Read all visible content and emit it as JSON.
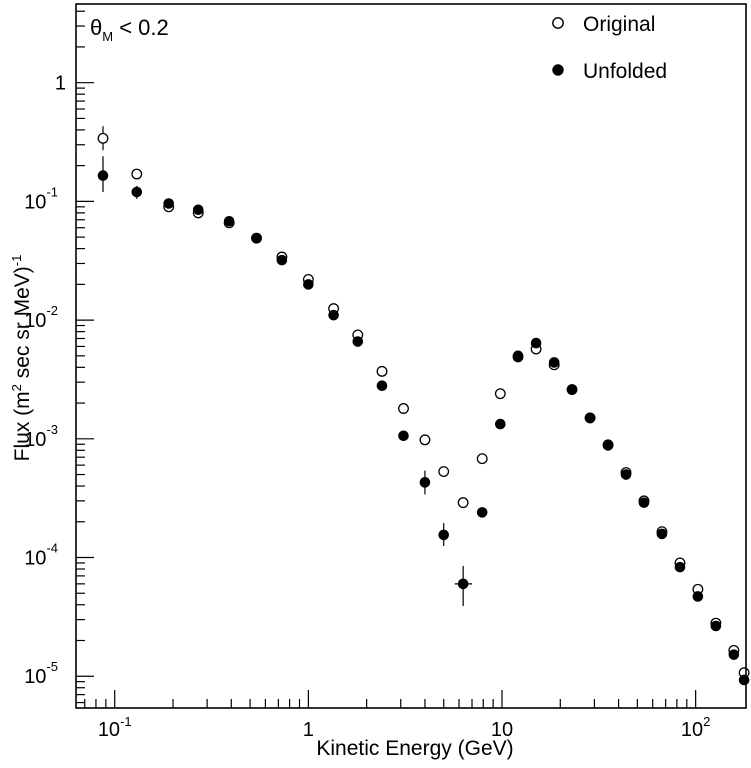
{
  "chart_data": {
    "type": "scatter",
    "x_scale": "log",
    "y_scale": "log",
    "xlabel": "Kinetic Energy (GeV)",
    "ylabel": "Flux (m<sup>2</sup> sec sr MeV)<sup>-1</sup>",
    "xlim": [
      0.0631,
      182
    ],
    "ylim": [
      5.4e-06,
      4.6
    ],
    "cut_label": {
      "symbol": "θ",
      "subscript": "M",
      "rest": " < 0.2"
    },
    "x_ticks": [
      {
        "value": 0.1,
        "label": "10",
        "sup": "-1"
      },
      {
        "value": 1,
        "label": "1",
        "sup": ""
      },
      {
        "value": 10,
        "label": "10",
        "sup": ""
      },
      {
        "value": 100,
        "label": "10",
        "sup": "2"
      }
    ],
    "y_ticks": [
      {
        "value": 1,
        "label": "1",
        "sup": ""
      },
      {
        "value": 0.1,
        "label": "10",
        "sup": "-1"
      },
      {
        "value": 0.01,
        "label": "10",
        "sup": "-2"
      },
      {
        "value": 0.001,
        "label": "10",
        "sup": "-3"
      },
      {
        "value": 0.0001,
        "label": "10",
        "sup": "-4"
      },
      {
        "value": 1e-05,
        "label": "10",
        "sup": "-5"
      }
    ],
    "legend_position": "top-right",
    "series": [
      {
        "name": "Original",
        "marker": "open-circle",
        "points": [
          {
            "x": 0.087,
            "y": 0.34,
            "yerr": [
              0.27,
              0.43
            ]
          },
          {
            "x": 0.13,
            "y": 0.17
          },
          {
            "x": 0.19,
            "y": 0.09
          },
          {
            "x": 0.27,
            "y": 0.08
          },
          {
            "x": 0.39,
            "y": 0.066
          },
          {
            "x": 0.54,
            "y": 0.049
          },
          {
            "x": 0.73,
            "y": 0.034
          },
          {
            "x": 1.0,
            "y": 0.022
          },
          {
            "x": 1.35,
            "y": 0.0125
          },
          {
            "x": 1.8,
            "y": 0.0075
          },
          {
            "x": 2.4,
            "y": 0.0037
          },
          {
            "x": 3.1,
            "y": 0.0018
          },
          {
            "x": 4.0,
            "y": 0.00098
          },
          {
            "x": 5.0,
            "y": 0.00053
          },
          {
            "x": 6.3,
            "y": 0.00029
          },
          {
            "x": 7.9,
            "y": 0.00068
          },
          {
            "x": 9.8,
            "y": 0.0024
          },
          {
            "x": 12.1,
            "y": 0.0049
          },
          {
            "x": 15.0,
            "y": 0.0057
          },
          {
            "x": 18.6,
            "y": 0.0042
          },
          {
            "x": 23.0,
            "y": 0.0026
          },
          {
            "x": 28.5,
            "y": 0.0015
          },
          {
            "x": 35.3,
            "y": 0.00089
          },
          {
            "x": 43.7,
            "y": 0.00052
          },
          {
            "x": 54.1,
            "y": 0.0003
          },
          {
            "x": 67.0,
            "y": 0.000165
          },
          {
            "x": 83.0,
            "y": 9e-05
          },
          {
            "x": 102.7,
            "y": 5.4e-05
          },
          {
            "x": 127.2,
            "y": 2.8e-05
          },
          {
            "x": 157.5,
            "y": 1.65e-05
          },
          {
            "x": 178,
            "y": 1.07e-05
          }
        ]
      },
      {
        "name": "Unfolded",
        "marker": "filled-circle",
        "points": [
          {
            "x": 0.087,
            "y": 0.165,
            "yerr": [
              0.12,
              0.24
            ]
          },
          {
            "x": 0.13,
            "y": 0.12,
            "yerr": [
              0.105,
              0.135
            ]
          },
          {
            "x": 0.19,
            "y": 0.096
          },
          {
            "x": 0.27,
            "y": 0.085
          },
          {
            "x": 0.39,
            "y": 0.068
          },
          {
            "x": 0.54,
            "y": 0.049
          },
          {
            "x": 0.73,
            "y": 0.032
          },
          {
            "x": 1.0,
            "y": 0.02
          },
          {
            "x": 1.35,
            "y": 0.011
          },
          {
            "x": 1.8,
            "y": 0.0066
          },
          {
            "x": 2.4,
            "y": 0.0028
          },
          {
            "x": 3.1,
            "y": 0.00106
          },
          {
            "x": 4.0,
            "y": 0.00043,
            "yerr": [
              0.00034,
              0.00054
            ]
          },
          {
            "x": 5.0,
            "y": 0.000155,
            "yerr": [
              0.000125,
              0.000195
            ]
          },
          {
            "x": 6.3,
            "y": 6e-05,
            "xerr": [
              5.7,
              7.0
            ],
            "yerr": [
              3.9e-05,
              8.5e-05
            ]
          },
          {
            "x": 7.9,
            "y": 0.00024
          },
          {
            "x": 9.8,
            "y": 0.00133
          },
          {
            "x": 12.1,
            "y": 0.005
          },
          {
            "x": 15.0,
            "y": 0.0064
          },
          {
            "x": 18.6,
            "y": 0.0044
          },
          {
            "x": 23.0,
            "y": 0.0026
          },
          {
            "x": 28.5,
            "y": 0.0015
          },
          {
            "x": 35.3,
            "y": 0.00088
          },
          {
            "x": 43.7,
            "y": 0.0005
          },
          {
            "x": 54.1,
            "y": 0.00029
          },
          {
            "x": 67.0,
            "y": 0.000158
          },
          {
            "x": 83.0,
            "y": 8.3e-05
          },
          {
            "x": 102.7,
            "y": 4.7e-05
          },
          {
            "x": 127.2,
            "y": 2.65e-05
          },
          {
            "x": 157.5,
            "y": 1.52e-05
          },
          {
            "x": 178,
            "y": 9.3e-06
          }
        ]
      }
    ]
  }
}
